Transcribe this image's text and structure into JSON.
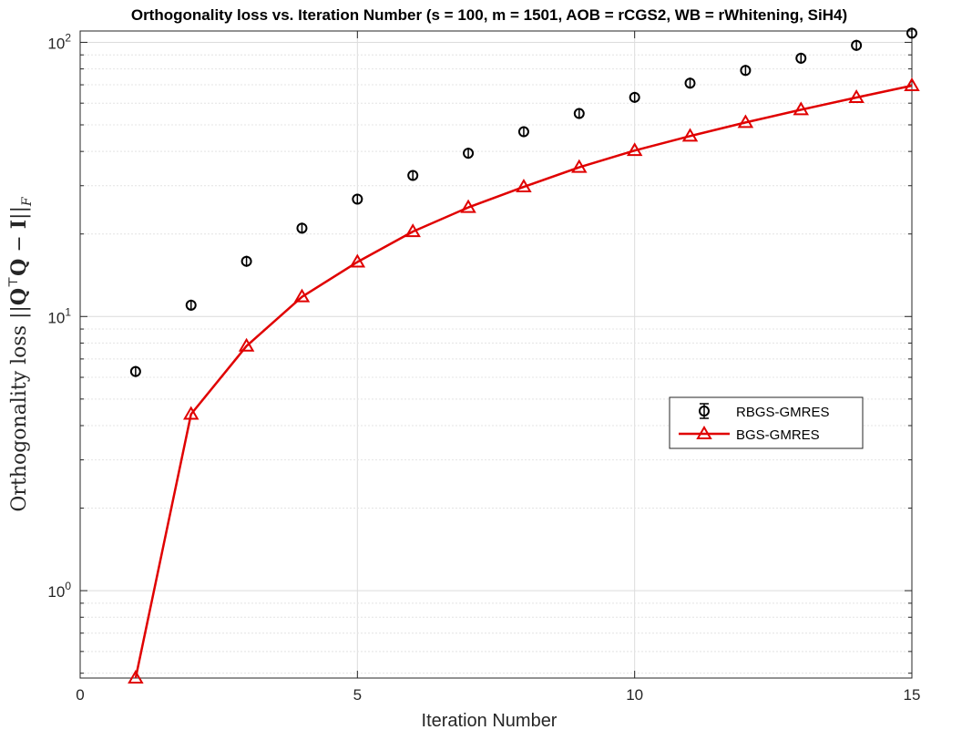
{
  "chart_data": {
    "type": "line",
    "title": "Orthogonality loss vs. Iteration Number (s = 100, m = 1501, AOB = rCGS2, WB = rWhitening, SiH4)",
    "xlabel": "Iteration Number",
    "ylabel": "Orthogonality loss ||Q⊤Q − I||F",
    "ylabel_parts": {
      "prefix": "Orthogonality loss ",
      "bar_open": "||",
      "q1": "Q",
      "transpose": "⊤",
      "q2": "Q",
      "minus": " − ",
      "identity": "I",
      "bar_close": "||",
      "subscript": "F"
    },
    "xlim": [
      0,
      15
    ],
    "ylim": [
      0.48,
      110
    ],
    "yscale": "log",
    "grid": true,
    "legend_position": "center-right",
    "x_ticks": [
      {
        "value": 0,
        "label": "0"
      },
      {
        "value": 5,
        "label": "5"
      },
      {
        "value": 10,
        "label": "10"
      },
      {
        "value": 15,
        "label": "15"
      }
    ],
    "y_ticks": [
      {
        "value": 1,
        "base": "10",
        "exp": "0"
      },
      {
        "value": 10,
        "base": "10",
        "exp": "1"
      },
      {
        "value": 100,
        "base": "10",
        "exp": "2"
      }
    ],
    "x": [
      1,
      2,
      3,
      4,
      5,
      6,
      7,
      8,
      9,
      10,
      11,
      12,
      13,
      14,
      15
    ],
    "series": [
      {
        "name": "RBGS-GMRES",
        "color": "#000000",
        "marker": "circle-errorbar",
        "line": false,
        "values": [
          6.3,
          11.0,
          15.9,
          21.0,
          26.8,
          32.7,
          39.4,
          47.2,
          55.0,
          63.0,
          71.0,
          79.0,
          87.5,
          97.5,
          108.0
        ]
      },
      {
        "name": "BGS-GMRES",
        "color": "#e00000",
        "marker": "triangle",
        "line": true,
        "values": [
          0.48,
          4.4,
          7.8,
          11.8,
          15.8,
          20.4,
          25.0,
          29.7,
          35.0,
          40.3,
          45.5,
          51.0,
          56.8,
          62.9,
          69.5
        ]
      }
    ]
  }
}
